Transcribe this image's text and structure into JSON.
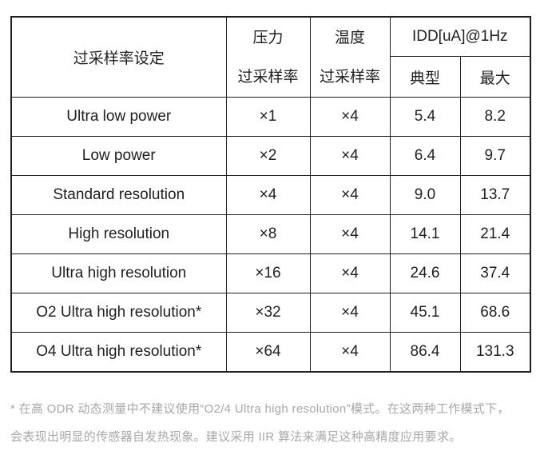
{
  "table": {
    "header": {
      "setting": "过采样率设定",
      "pressure": {
        "line1": "压力",
        "line2": "过采样率"
      },
      "temperature": {
        "line1": "温度",
        "line2": "过采样率"
      },
      "idd": "IDD[uA]@1Hz",
      "typical": "典型",
      "max": "最大"
    },
    "rows": [
      {
        "setting": "Ultra low power",
        "pressure_osr": "×1",
        "temp_osr": "×4",
        "idd_typical": "5.4",
        "idd_max": "8.2"
      },
      {
        "setting": "Low power",
        "pressure_osr": "×2",
        "temp_osr": "×4",
        "idd_typical": "6.4",
        "idd_max": "9.7"
      },
      {
        "setting": "Standard resolution",
        "pressure_osr": "×4",
        "temp_osr": "×4",
        "idd_typical": "9.0",
        "idd_max": "13.7"
      },
      {
        "setting": "High resolution",
        "pressure_osr": "×8",
        "temp_osr": "×4",
        "idd_typical": "14.1",
        "idd_max": "21.4"
      },
      {
        "setting": "Ultra high resolution",
        "pressure_osr": "×16",
        "temp_osr": "×4",
        "idd_typical": "24.6",
        "idd_max": "37.4"
      },
      {
        "setting": "O2 Ultra high resolution*",
        "pressure_osr": "×32",
        "temp_osr": "×4",
        "idd_typical": "45.1",
        "idd_max": "68.6"
      },
      {
        "setting": "O4 Ultra high resolution*",
        "pressure_osr": "×64",
        "temp_osr": "×4",
        "idd_typical": "86.4",
        "idd_max": "131.3"
      }
    ]
  },
  "footnote": {
    "lines": [
      "* 在高 ODR 动态测量中不建议使用“O2/4 Ultra high resolution”模式。在这两种工作模式下，",
      "会表现出明显的传感器自发热现象。建议采用 IIR 算法来满足这种高精度应用要求。"
    ]
  },
  "colors": {
    "text": "#1f1f1f",
    "border": "#1f1f1f",
    "footnote_text": "#a8a8a8",
    "background": "#ffffff"
  }
}
